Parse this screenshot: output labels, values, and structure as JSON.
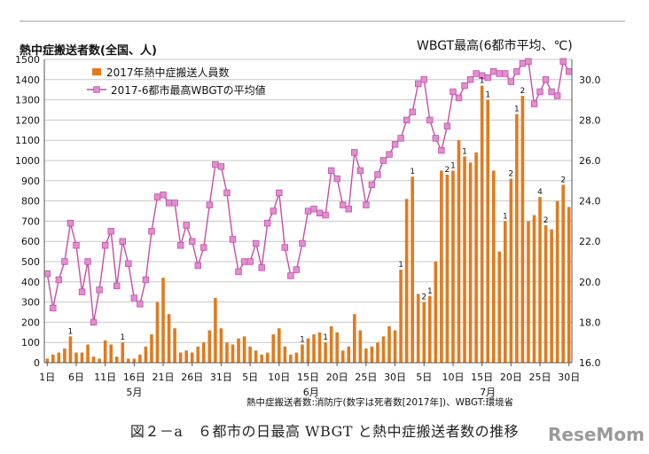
{
  "header": {
    "left_title": "熱中症搬送者数(全国、人)",
    "right_title": "WBGT最高(6都市平均、℃)"
  },
  "source_note": "熱中症搬送者数:消防庁(数字は死者数[2017年])、WBGT:環境省",
  "caption": "図２－a　６都市の日最高 WBGT と熱中症搬送者数の推移",
  "watermark": "ReseMom",
  "chart_data": {
    "type": "bar",
    "x_tick_labels": [
      "1日",
      "6日",
      "11日",
      "16日",
      "21日",
      "26日",
      "31日",
      "5日",
      "10日",
      "15日",
      "20日",
      "25日",
      "30日",
      "5日",
      "10日",
      "15日",
      "20日",
      "25日",
      "30日"
    ],
    "month_labels": [
      "5月",
      "6月",
      "7月"
    ],
    "ylim_left": [
      0,
      1500
    ],
    "yticks_left": [
      0,
      100,
      200,
      300,
      400,
      500,
      600,
      700,
      800,
      900,
      1000,
      1100,
      1200,
      1300,
      1400,
      1500
    ],
    "ylim_right": [
      16.0,
      31.0
    ],
    "yticks_right": [
      16.0,
      18.0,
      20.0,
      22.0,
      24.0,
      26.0,
      28.0,
      30.0
    ],
    "grid": true,
    "legend_position": "top-left",
    "colors": {
      "bars": "#e07b1f",
      "line": "#c34fa5",
      "marker": "#e08fd1",
      "grid": "#c8c8c8"
    },
    "series": [
      {
        "name": "2017年熱中症搬送人員数",
        "type": "bar",
        "axis": "left",
        "values": [
          20,
          40,
          50,
          70,
          130,
          50,
          50,
          90,
          30,
          20,
          110,
          90,
          30,
          100,
          20,
          20,
          40,
          80,
          140,
          300,
          420,
          240,
          170,
          50,
          60,
          50,
          80,
          100,
          160,
          320,
          170,
          100,
          90,
          120,
          130,
          80,
          60,
          40,
          50,
          140,
          170,
          80,
          40,
          50,
          90,
          120,
          140,
          150,
          100,
          180,
          150,
          60,
          80,
          240,
          160,
          70,
          80,
          100,
          130,
          180,
          160,
          460,
          810,
          920,
          340,
          300,
          330,
          500,
          950,
          930,
          950,
          1100,
          1020,
          990,
          1040,
          1370,
          1300,
          950,
          550,
          700,
          910,
          1230,
          1320,
          700,
          730,
          820,
          680,
          660,
          800,
          880,
          770
        ]
      },
      {
        "name": "2017-6都市最高WBGTの平均値",
        "type": "line",
        "axis": "right",
        "values": [
          20.4,
          18.7,
          20.1,
          21.0,
          22.9,
          21.8,
          19.5,
          21.0,
          18.0,
          19.6,
          21.8,
          22.5,
          19.8,
          22.0,
          20.9,
          19.2,
          18.9,
          20.1,
          22.5,
          24.2,
          24.3,
          23.9,
          23.9,
          21.8,
          22.8,
          22.0,
          20.8,
          21.7,
          23.8,
          25.8,
          25.7,
          24.4,
          22.1,
          20.5,
          21.0,
          21.0,
          21.9,
          20.7,
          22.9,
          23.5,
          24.4,
          21.7,
          20.3,
          20.6,
          21.9,
          23.5,
          23.6,
          23.4,
          23.3,
          25.5,
          25.1,
          23.8,
          23.6,
          26.4,
          25.5,
          23.8,
          24.8,
          25.3,
          26.0,
          26.3,
          26.8,
          27.1,
          28.0,
          28.4,
          29.8,
          30.0,
          28.0,
          27.1,
          26.5,
          27.7,
          29.4,
          29.1,
          29.7,
          30.0,
          30.3,
          30.2,
          30.1,
          30.4,
          30.3,
          30.3,
          29.9,
          30.4,
          30.8,
          30.9,
          28.8,
          29.4,
          30.0,
          29.4,
          29.2,
          30.9,
          30.4
        ]
      }
    ],
    "death_labels": [
      {
        "day": 4,
        "label": "1"
      },
      {
        "day": 13,
        "label": "1"
      },
      {
        "day": 44,
        "label": "1"
      },
      {
        "day": 48,
        "label": "1"
      },
      {
        "day": 61,
        "label": "1"
      },
      {
        "day": 63,
        "label": "1"
      },
      {
        "day": 65,
        "label": "2"
      },
      {
        "day": 66,
        "label": "1"
      },
      {
        "day": 69,
        "label": "2"
      },
      {
        "day": 70,
        "label": "1"
      },
      {
        "day": 72,
        "label": "1"
      },
      {
        "day": 75,
        "label": "1"
      },
      {
        "day": 76,
        "label": "1"
      },
      {
        "day": 79,
        "label": "1"
      },
      {
        "day": 80,
        "label": "2"
      },
      {
        "day": 81,
        "label": "1"
      },
      {
        "day": 82,
        "label": "2"
      },
      {
        "day": 85,
        "label": "4"
      },
      {
        "day": 86,
        "label": "2"
      },
      {
        "day": 89,
        "label": "2"
      }
    ]
  }
}
